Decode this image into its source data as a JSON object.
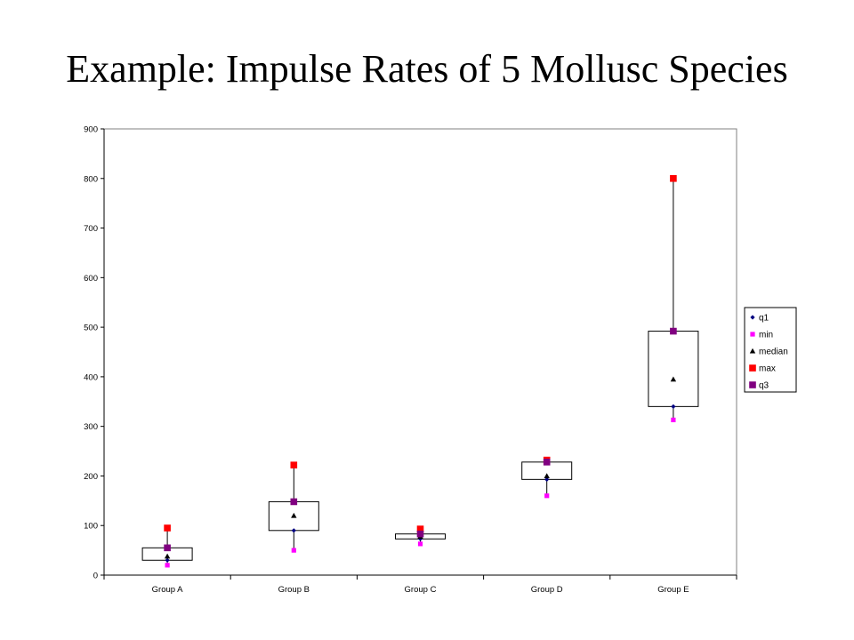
{
  "slide": {
    "title": "Example: Impulse Rates of 5 Mollusc Species"
  },
  "chart_data": {
    "type": "scatter",
    "subtype": "box-plot-from-summary-markers",
    "categories": [
      "Group A",
      "Group B",
      "Group C",
      "Group D",
      "Group E"
    ],
    "ylim": [
      0,
      900
    ],
    "yticks": [
      0,
      100,
      200,
      300,
      400,
      500,
      600,
      700,
      800,
      900
    ],
    "grid": false,
    "legend_placement": "right",
    "series": [
      {
        "name": "q1",
        "marker": "diamond",
        "color": "#000080",
        "values": [
          30,
          90,
          73,
          193,
          340
        ]
      },
      {
        "name": "min",
        "marker": "square",
        "color": "#ff00ff",
        "values": [
          20,
          50,
          63,
          160,
          313
        ]
      },
      {
        "name": "median",
        "marker": "triangle",
        "color": "#000000",
        "values": [
          38,
          120,
          78,
          200,
          395
        ]
      },
      {
        "name": "max",
        "marker": "square",
        "color": "#ff0000",
        "values": [
          95,
          222,
          93,
          232,
          800
        ]
      },
      {
        "name": "q3",
        "marker": "square",
        "color": "#800080",
        "values": [
          55,
          148,
          83,
          228,
          492
        ]
      }
    ]
  }
}
